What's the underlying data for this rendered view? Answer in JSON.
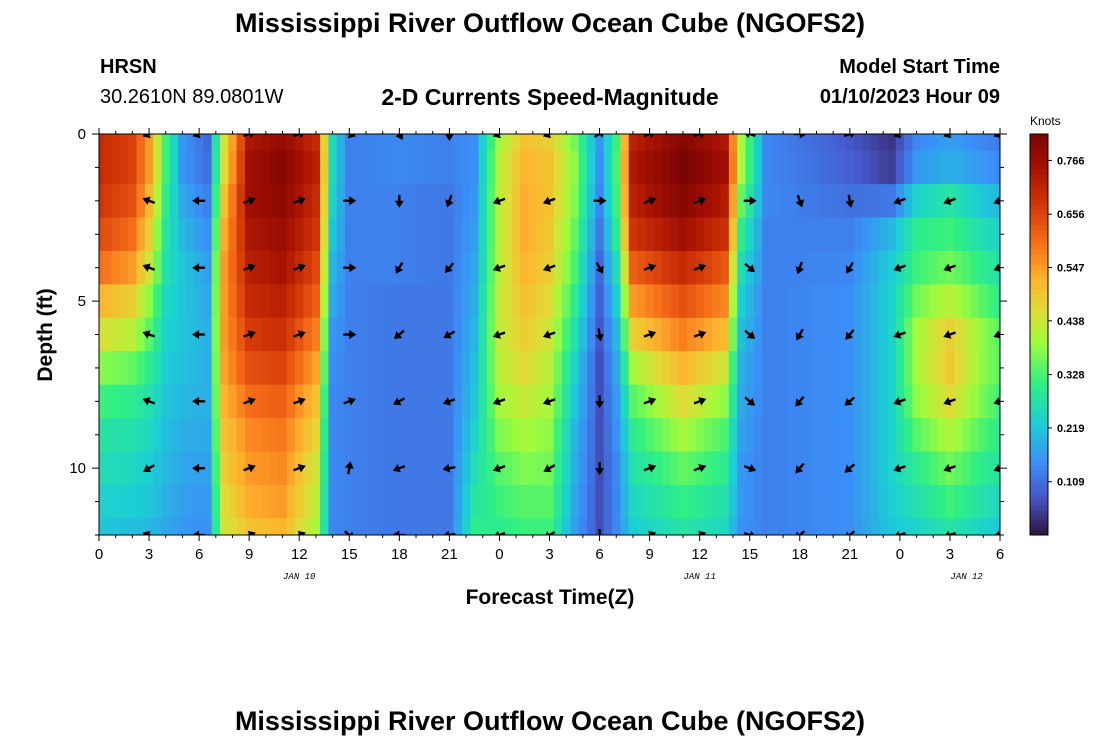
{
  "header": {
    "title": "Mississippi River Outflow Ocean Cube (NGOFS2)",
    "station": "HRSN",
    "coordinates": "30.2610N  89.0801W",
    "subtitle": "2-D Currents Speed-Magnitude",
    "model_start_label": "Model Start Time",
    "model_start_value": "01/10/2023 Hour 09"
  },
  "footer": {
    "title": "Mississippi River Outflow Ocean Cube (NGOFS2)"
  },
  "chart_data": {
    "type": "heatmap",
    "title": "2-D Currents Speed-Magnitude",
    "xlabel": "Forecast Time(Z)",
    "ylabel": "Depth (ft)",
    "x_range_hours": [
      0,
      54
    ],
    "y_range_ft": [
      0,
      12
    ],
    "x_ticks": [
      {
        "h": 0,
        "label": "0"
      },
      {
        "h": 3,
        "label": "3"
      },
      {
        "h": 6,
        "label": "6"
      },
      {
        "h": 9,
        "label": "9"
      },
      {
        "h": 12,
        "label": "12"
      },
      {
        "h": 15,
        "label": "15"
      },
      {
        "h": 18,
        "label": "18"
      },
      {
        "h": 21,
        "label": "21"
      },
      {
        "h": 24,
        "label": "0"
      },
      {
        "h": 27,
        "label": "3"
      },
      {
        "h": 30,
        "label": "6"
      },
      {
        "h": 33,
        "label": "9"
      },
      {
        "h": 36,
        "label": "12"
      },
      {
        "h": 39,
        "label": "15"
      },
      {
        "h": 42,
        "label": "18"
      },
      {
        "h": 45,
        "label": "21"
      },
      {
        "h": 48,
        "label": "0"
      },
      {
        "h": 51,
        "label": "3"
      },
      {
        "h": 54,
        "label": "6"
      }
    ],
    "date_labels": [
      {
        "h": 12,
        "label": "JAN 10"
      },
      {
        "h": 36,
        "label": "JAN 11"
      },
      {
        "h": 52,
        "label": "JAN 12"
      }
    ],
    "y_ticks": [
      {
        "v": 0,
        "label": "0"
      },
      {
        "v": 5,
        "label": "5"
      },
      {
        "v": 10,
        "label": "10"
      }
    ],
    "colorbar": {
      "label": "Knots",
      "min": 0.0,
      "max": 0.82,
      "ticks": [
        0.766,
        0.656,
        0.547,
        0.438,
        0.328,
        0.219,
        0.109
      ],
      "tick_labels": [
        "0.766",
        "0.656",
        "0.547",
        "0.438",
        "0.328",
        "0.219",
        "0.109"
      ]
    },
    "depth_levels_ft": [
      0,
      1,
      2,
      3,
      4,
      5,
      6,
      7,
      8,
      9,
      10,
      11,
      12
    ],
    "speed_profiles": [
      {
        "h": 0,
        "v": [
          0.7,
          0.7,
          0.68,
          0.65,
          0.6,
          0.52,
          0.45,
          0.38,
          0.32,
          0.28,
          0.26,
          0.24,
          0.22
        ]
      },
      {
        "h": 2,
        "v": [
          0.66,
          0.66,
          0.64,
          0.6,
          0.55,
          0.48,
          0.42,
          0.35,
          0.3,
          0.27,
          0.25,
          0.23,
          0.21
        ]
      },
      {
        "h": 3,
        "v": [
          0.55,
          0.55,
          0.52,
          0.48,
          0.44,
          0.38,
          0.34,
          0.3,
          0.27,
          0.25,
          0.23,
          0.22,
          0.2
        ]
      },
      {
        "h": 4,
        "v": [
          0.32,
          0.32,
          0.3,
          0.28,
          0.27,
          0.25,
          0.24,
          0.23,
          0.22,
          0.21,
          0.2,
          0.19,
          0.18
        ]
      },
      {
        "h": 5,
        "v": [
          0.16,
          0.16,
          0.18,
          0.2,
          0.22,
          0.22,
          0.22,
          0.21,
          0.2,
          0.19,
          0.18,
          0.17,
          0.16
        ]
      },
      {
        "h": 6.5,
        "v": [
          0.1,
          0.11,
          0.13,
          0.15,
          0.17,
          0.18,
          0.19,
          0.19,
          0.19,
          0.18,
          0.17,
          0.16,
          0.15
        ]
      },
      {
        "h": 7.5,
        "v": [
          0.45,
          0.46,
          0.5,
          0.53,
          0.55,
          0.55,
          0.55,
          0.54,
          0.52,
          0.5,
          0.48,
          0.46,
          0.44
        ]
      },
      {
        "h": 9,
        "v": [
          0.74,
          0.76,
          0.76,
          0.74,
          0.72,
          0.7,
          0.67,
          0.64,
          0.6,
          0.57,
          0.55,
          0.53,
          0.5
        ]
      },
      {
        "h": 11,
        "v": [
          0.78,
          0.8,
          0.79,
          0.77,
          0.75,
          0.72,
          0.69,
          0.66,
          0.62,
          0.59,
          0.57,
          0.55,
          0.52
        ]
      },
      {
        "h": 13,
        "v": [
          0.7,
          0.72,
          0.7,
          0.68,
          0.65,
          0.62,
          0.58,
          0.54,
          0.5,
          0.47,
          0.44,
          0.42,
          0.4
        ]
      },
      {
        "h": 14,
        "v": [
          0.25,
          0.25,
          0.24,
          0.22,
          0.2,
          0.18,
          0.16,
          0.15,
          0.14,
          0.14,
          0.14,
          0.14,
          0.14
        ]
      },
      {
        "h": 15,
        "v": [
          0.13,
          0.13,
          0.13,
          0.13,
          0.13,
          0.13,
          0.13,
          0.13,
          0.13,
          0.13,
          0.13,
          0.13,
          0.13
        ]
      },
      {
        "h": 18,
        "v": [
          0.14,
          0.14,
          0.13,
          0.13,
          0.13,
          0.12,
          0.12,
          0.12,
          0.12,
          0.12,
          0.12,
          0.12,
          0.12
        ]
      },
      {
        "h": 21,
        "v": [
          0.13,
          0.13,
          0.12,
          0.12,
          0.12,
          0.12,
          0.12,
          0.12,
          0.12,
          0.12,
          0.12,
          0.12,
          0.12
        ]
      },
      {
        "h": 22.5,
        "v": [
          0.15,
          0.15,
          0.16,
          0.17,
          0.18,
          0.19,
          0.2,
          0.21,
          0.22,
          0.24,
          0.26,
          0.28,
          0.3
        ]
      },
      {
        "h": 24,
        "v": [
          0.4,
          0.42,
          0.42,
          0.42,
          0.42,
          0.43,
          0.43,
          0.42,
          0.4,
          0.37,
          0.34,
          0.32,
          0.3
        ]
      },
      {
        "h": 25.5,
        "v": [
          0.5,
          0.52,
          0.53,
          0.53,
          0.52,
          0.5,
          0.48,
          0.46,
          0.43,
          0.4,
          0.37,
          0.34,
          0.32
        ]
      },
      {
        "h": 27,
        "v": [
          0.48,
          0.5,
          0.5,
          0.49,
          0.48,
          0.46,
          0.44,
          0.42,
          0.4,
          0.38,
          0.36,
          0.34,
          0.32
        ]
      },
      {
        "h": 28.5,
        "v": [
          0.36,
          0.38,
          0.37,
          0.35,
          0.33,
          0.3,
          0.27,
          0.24,
          0.22,
          0.2,
          0.19,
          0.18,
          0.17
        ]
      },
      {
        "h": 30,
        "v": [
          0.16,
          0.15,
          0.14,
          0.12,
          0.1,
          0.09,
          0.08,
          0.07,
          0.07,
          0.07,
          0.07,
          0.07,
          0.07
        ]
      },
      {
        "h": 31,
        "v": [
          0.32,
          0.33,
          0.32,
          0.3,
          0.26,
          0.23,
          0.2,
          0.18,
          0.16,
          0.15,
          0.14,
          0.14,
          0.14
        ]
      },
      {
        "h": 32,
        "v": [
          0.72,
          0.74,
          0.72,
          0.68,
          0.62,
          0.55,
          0.48,
          0.4,
          0.34,
          0.3,
          0.27,
          0.25,
          0.23
        ]
      },
      {
        "h": 35,
        "v": [
          0.8,
          0.82,
          0.8,
          0.76,
          0.7,
          0.64,
          0.58,
          0.52,
          0.46,
          0.4,
          0.35,
          0.31,
          0.28
        ]
      },
      {
        "h": 37.5,
        "v": [
          0.74,
          0.76,
          0.73,
          0.69,
          0.63,
          0.57,
          0.51,
          0.44,
          0.38,
          0.33,
          0.3,
          0.27,
          0.25
        ]
      },
      {
        "h": 38.5,
        "v": [
          0.4,
          0.4,
          0.35,
          0.3,
          0.26,
          0.23,
          0.21,
          0.19,
          0.18,
          0.17,
          0.16,
          0.16,
          0.15
        ]
      },
      {
        "h": 40,
        "v": [
          0.14,
          0.14,
          0.14,
          0.13,
          0.13,
          0.13,
          0.13,
          0.13,
          0.13,
          0.13,
          0.13,
          0.13,
          0.13
        ]
      },
      {
        "h": 45,
        "v": [
          0.08,
          0.09,
          0.11,
          0.13,
          0.14,
          0.15,
          0.15,
          0.15,
          0.15,
          0.15,
          0.15,
          0.15,
          0.15
        ]
      },
      {
        "h": 47.5,
        "v": [
          0.04,
          0.05,
          0.12,
          0.2,
          0.23,
          0.24,
          0.24,
          0.24,
          0.24,
          0.24,
          0.24,
          0.23,
          0.22
        ]
      },
      {
        "h": 49,
        "v": [
          0.14,
          0.16,
          0.24,
          0.3,
          0.32,
          0.36,
          0.4,
          0.4,
          0.38,
          0.34,
          0.3,
          0.27,
          0.24
        ]
      },
      {
        "h": 51,
        "v": [
          0.17,
          0.19,
          0.28,
          0.32,
          0.36,
          0.42,
          0.48,
          0.49,
          0.46,
          0.41,
          0.36,
          0.32,
          0.28
        ]
      },
      {
        "h": 53,
        "v": [
          0.14,
          0.16,
          0.22,
          0.26,
          0.3,
          0.34,
          0.38,
          0.38,
          0.36,
          0.33,
          0.3,
          0.27,
          0.24
        ]
      },
      {
        "h": 54,
        "v": [
          0.12,
          0.14,
          0.2,
          0.24,
          0.27,
          0.3,
          0.34,
          0.34,
          0.32,
          0.3,
          0.28,
          0.25,
          0.22
        ]
      }
    ],
    "vector_hours": [
      3,
      6,
      9,
      12,
      15,
      18,
      21,
      24,
      27,
      30,
      33,
      36,
      39,
      42,
      45,
      48,
      51,
      54
    ],
    "vector_depths_ft": [
      0,
      2,
      4,
      6,
      8,
      10,
      12
    ],
    "vector_directions_deg": [
      [
        200,
        160,
        160,
        160,
        160,
        210,
        160
      ],
      [
        200,
        180,
        180,
        180,
        180,
        180,
        180
      ],
      [
        20,
        20,
        20,
        20,
        20,
        20,
        20
      ],
      [
        20,
        20,
        20,
        20,
        20,
        20,
        20
      ],
      [
        340,
        0,
        0,
        0,
        20,
        80,
        320
      ],
      [
        300,
        270,
        240,
        220,
        210,
        200,
        180
      ],
      [
        270,
        250,
        230,
        210,
        200,
        190,
        190
      ],
      [
        200,
        200,
        200,
        200,
        200,
        200,
        200
      ],
      [
        200,
        200,
        200,
        200,
        200,
        210,
        210
      ],
      [
        30,
        0,
        300,
        280,
        270,
        270,
        270
      ],
      [
        20,
        20,
        20,
        20,
        20,
        20,
        20
      ],
      [
        20,
        20,
        20,
        20,
        20,
        20,
        20
      ],
      [
        160,
        0,
        320,
        320,
        320,
        340,
        340
      ],
      [
        0,
        290,
        250,
        240,
        230,
        230,
        220
      ],
      [
        20,
        280,
        240,
        230,
        220,
        220,
        220
      ],
      [
        200,
        200,
        200,
        200,
        200,
        200,
        200
      ],
      [
        200,
        200,
        200,
        200,
        200,
        200,
        200
      ],
      [
        200,
        200,
        200,
        200,
        200,
        200,
        200
      ]
    ]
  }
}
